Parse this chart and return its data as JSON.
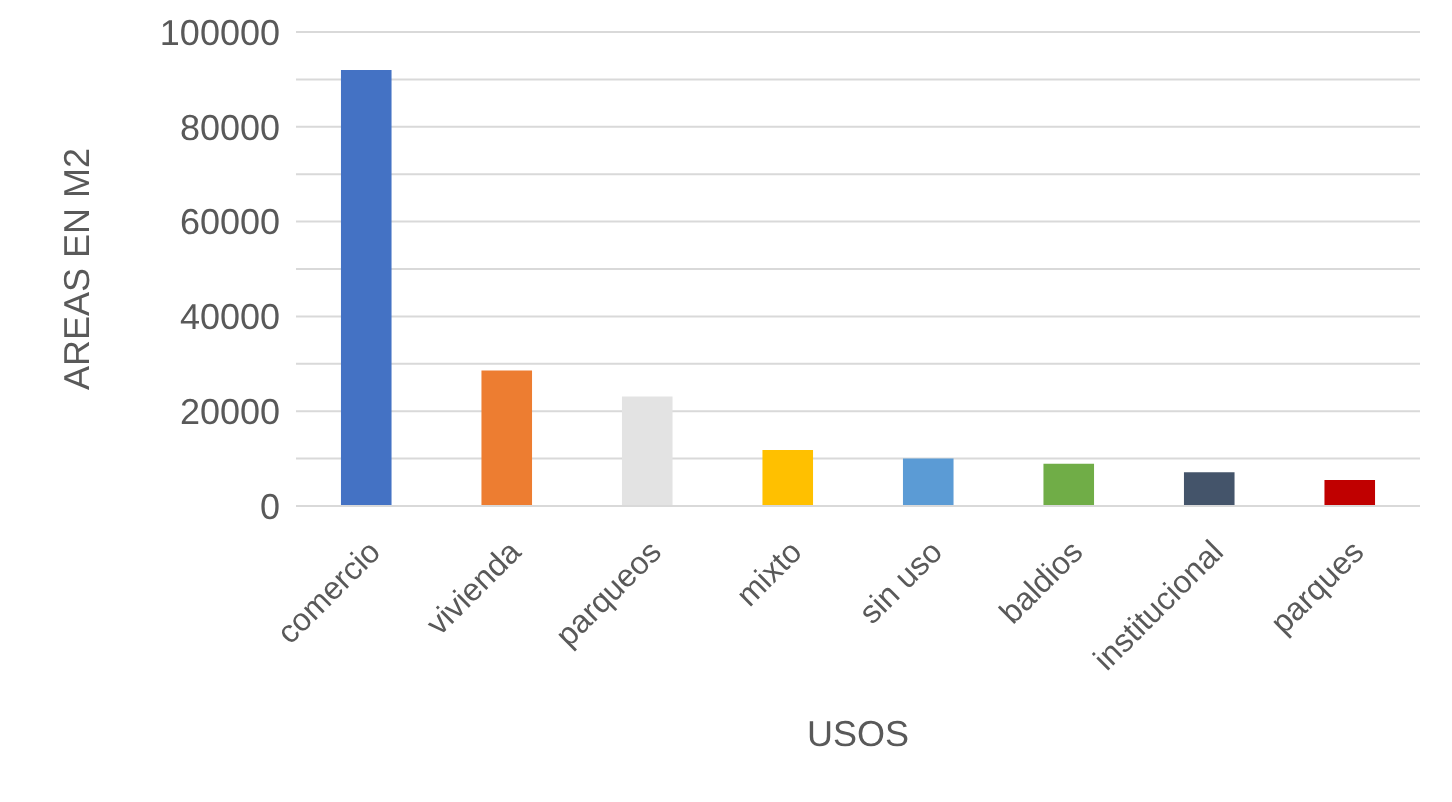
{
  "chart_data": {
    "type": "bar",
    "xlabel": "USOS",
    "ylabel": "AREAS EN M2",
    "categories": [
      "comercio",
      "vivienda",
      "parqueos",
      "mixto",
      "sin uso",
      "baldios",
      "institucional",
      "parques"
    ],
    "values": [
      92000,
      28600,
      23100,
      11800,
      10000,
      8900,
      7100,
      5500
    ],
    "colors": [
      "#4472c4",
      "#ed7d31",
      "#e3e3e3",
      "#ffc000",
      "#5b9bd5",
      "#70ad47",
      "#44546a",
      "#c00000"
    ],
    "ylim": [
      0,
      100000
    ],
    "yticks": [
      0,
      {
        "value": 10000,
        "label": null
      },
      20000,
      {
        "value": 30000,
        "label": null
      },
      40000,
      {
        "value": 50000,
        "label": null
      },
      60000,
      {
        "value": 70000,
        "label": null
      },
      80000,
      {
        "value": 90000,
        "label": null
      },
      100000
    ],
    "grid": "y"
  }
}
